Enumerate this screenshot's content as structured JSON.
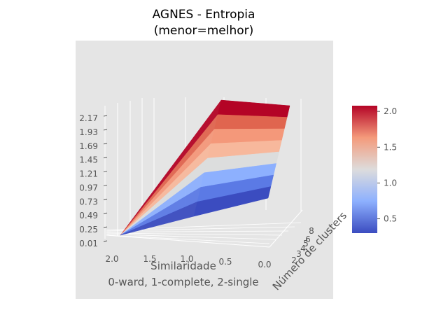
{
  "chart_data": {
    "type": "surface",
    "title_line1": "AGNES - Entropia",
    "title_line2": "(menor=melhor)",
    "xlabel_line1": "Similaridade",
    "xlabel_line2": "0-ward, 1-complete, 2-single",
    "ylabel": "Número de clusters",
    "z_ticks": [
      "0.01",
      "0.25",
      "0.49",
      "0.73",
      "0.97",
      "1.21",
      "1.45",
      "1.69",
      "1.93",
      "2.17"
    ],
    "x_ticks": [
      "2.0",
      "1.5",
      "1.0",
      "0.5",
      "0.0"
    ],
    "y_ticks": [
      "2",
      "3",
      "4",
      "5",
      "6",
      "8"
    ],
    "colorbar": {
      "colormap": "coolwarm",
      "min": 0.3,
      "max": 2.08,
      "ticks": [
        "0.5",
        "1.0",
        "1.5",
        "2.0"
      ]
    },
    "surface_rows": [
      {
        "level": 0.49,
        "color": "#3b4cc0"
      },
      {
        "level": 0.73,
        "color": "#5b7ae5"
      },
      {
        "level": 0.97,
        "color": "#8db0fe"
      },
      {
        "level": 1.21,
        "color": "#dcdddd"
      },
      {
        "level": 1.45,
        "color": "#f7b89c"
      },
      {
        "level": 1.69,
        "color": "#f4987a"
      },
      {
        "level": 1.93,
        "color": "#e0654f"
      },
      {
        "level": 2.17,
        "color": "#b40426"
      }
    ],
    "background": "#e5e5e5",
    "grid": true
  }
}
